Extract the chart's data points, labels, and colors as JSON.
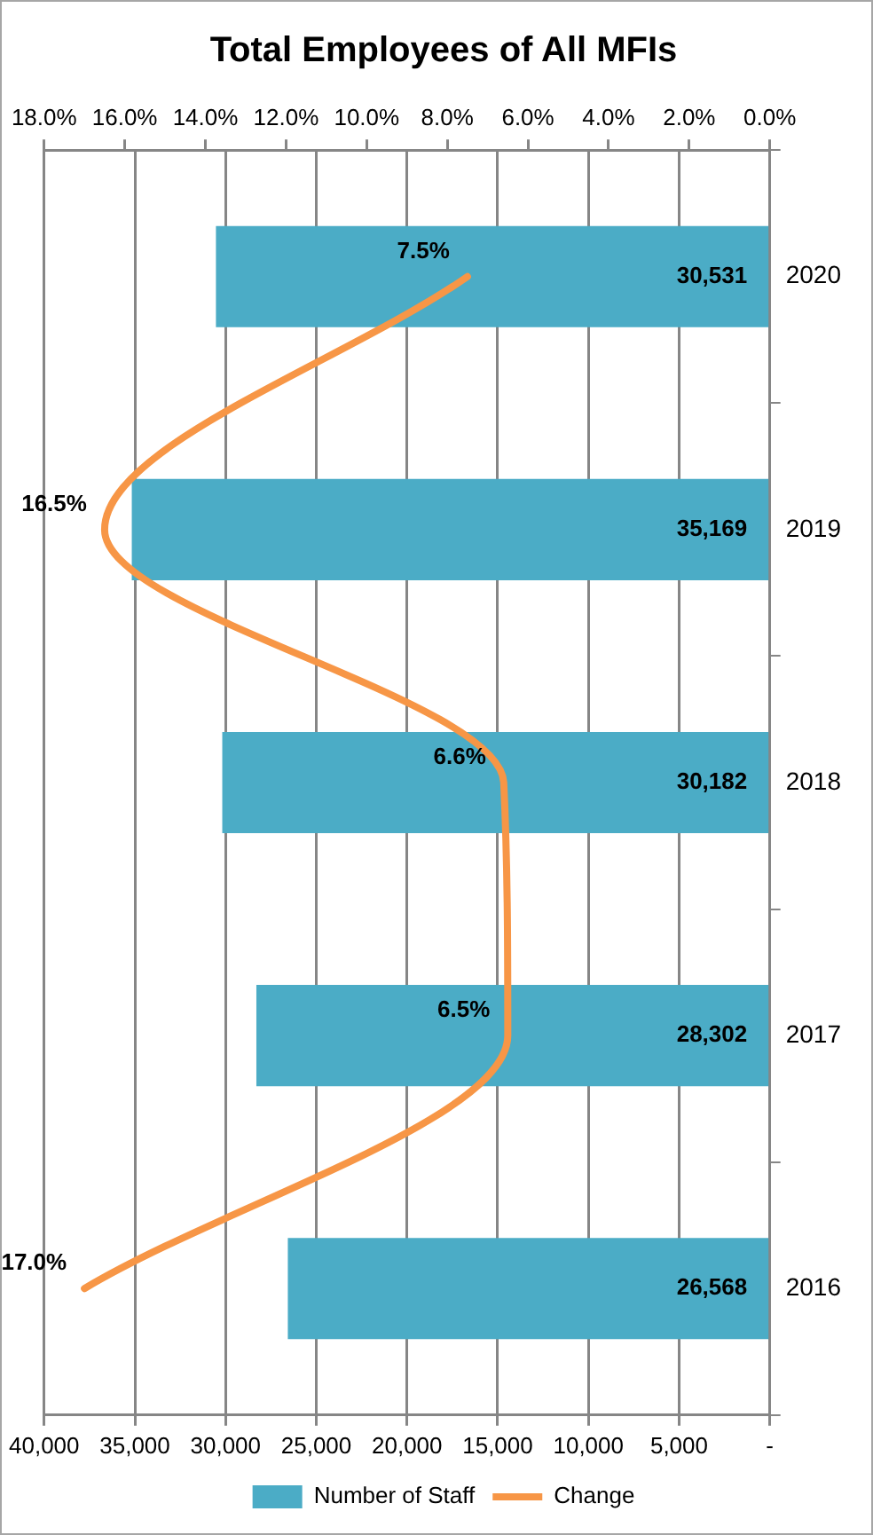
{
  "chart_data": {
    "type": "bar",
    "orientation": "horizontal",
    "title": "Total Employees of All MFIs",
    "categories": [
      "2020",
      "2019",
      "2018",
      "2017",
      "2016"
    ],
    "series": [
      {
        "name": "Number of Staff",
        "color": "#4bacc6",
        "values": [
          30531,
          35169,
          30182,
          28302,
          26568
        ],
        "value_labels": [
          "30,531",
          "35,169",
          "30,182",
          "28,302",
          "26,568"
        ]
      },
      {
        "name": "Change",
        "type": "line",
        "axis": "x2",
        "color": "#f79646",
        "values": [
          7.5,
          16.5,
          6.6,
          6.5,
          17.0
        ],
        "value_labels": [
          "7.5%",
          "16.5%",
          "6.6%",
          "6.5%",
          "17.0%"
        ]
      }
    ],
    "xlim": [
      40000,
      0
    ],
    "xticks": [
      {
        "value": 40000,
        "label": "40,000"
      },
      {
        "value": 35000,
        "label": "35,000"
      },
      {
        "value": 30000,
        "label": "30,000"
      },
      {
        "value": 25000,
        "label": "25,000"
      },
      {
        "value": 20000,
        "label": "20,000"
      },
      {
        "value": 15000,
        "label": "15,000"
      },
      {
        "value": 10000,
        "label": "10,000"
      },
      {
        "value": 5000,
        "label": "5,000"
      },
      {
        "value": 0,
        "label": "-"
      }
    ],
    "x2lim": [
      18,
      0
    ],
    "x2ticks": [
      {
        "value": 18,
        "label": "18.0%"
      },
      {
        "value": 16,
        "label": "16.0%"
      },
      {
        "value": 14,
        "label": "14.0%"
      },
      {
        "value": 12,
        "label": "12.0%"
      },
      {
        "value": 10,
        "label": "10.0%"
      },
      {
        "value": 8,
        "label": "8.0%"
      },
      {
        "value": 6,
        "label": "6.0%"
      },
      {
        "value": 4,
        "label": "4.0%"
      },
      {
        "value": 2,
        "label": "2.0%"
      },
      {
        "value": 0,
        "label": "0.0%"
      }
    ],
    "grid": "x",
    "legend": "bottom"
  }
}
